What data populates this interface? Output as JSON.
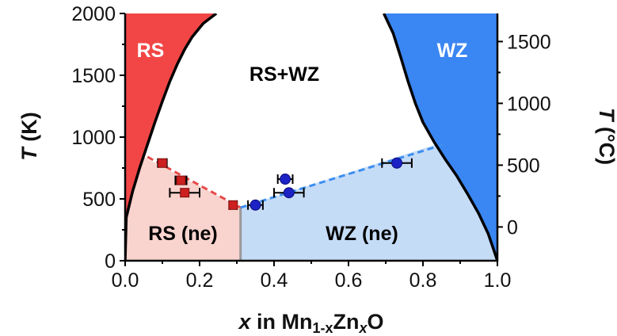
{
  "chart_data": {
    "type": "scatter",
    "title": "",
    "xlabel_prefix": "x",
    "xlabel_text": "in Mn",
    "xlabel_sub1": "1-x",
    "xlabel_mid": "Zn",
    "xlabel_sub2": "x",
    "xlabel_end": "O",
    "ylabel_var": "T",
    "ylabel_unit": "(K)",
    "y2label_var": "T",
    "y2label_unit": "(°C)",
    "xlim": [
      0.0,
      1.0
    ],
    "ylim": [
      0,
      2000
    ],
    "x_ticks": [
      "0.0",
      "0.2",
      "0.4",
      "0.6",
      "0.8",
      "1.0"
    ],
    "y_ticks": [
      "0",
      "500",
      "1000",
      "1500",
      "2000"
    ],
    "y2_ticks": [
      "0",
      "500",
      "1000",
      "1500"
    ],
    "y2_offset": 273,
    "grid": false,
    "regions": {
      "rs": "RS",
      "wz": "WZ",
      "two_phase": "RS+WZ",
      "rs_ne": "RS (ne)",
      "wz_ne": "WZ (ne)"
    },
    "colors": {
      "rs": "#f24646",
      "rs_light": "#f9d3ce",
      "wz": "#3a86f2",
      "wz_light": "#c5dcf7",
      "rs_points": "#cc1f1f",
      "wz_points": "#1c22c4",
      "rs_line": "#e84a4a",
      "wz_line": "#3d8ef0",
      "boundary": "#000000",
      "divider": "#999999"
    },
    "boundaries": {
      "rs_solvus": [
        [
          0.0,
          0
        ],
        [
          0.003,
          350
        ],
        [
          0.02,
          560
        ],
        [
          0.04,
          760
        ],
        [
          0.06,
          940
        ],
        [
          0.08,
          1120
        ],
        [
          0.1,
          1290
        ],
        [
          0.12,
          1450
        ],
        [
          0.14,
          1590
        ],
        [
          0.16,
          1710
        ],
        [
          0.18,
          1810
        ],
        [
          0.21,
          1920
        ],
        [
          0.245,
          2000
        ]
      ],
      "wz_solvus": [
        [
          0.695,
          2000
        ],
        [
          0.72,
          1840
        ],
        [
          0.74,
          1650
        ],
        [
          0.76,
          1450
        ],
        [
          0.78,
          1270
        ],
        [
          0.8,
          1120
        ],
        [
          0.83,
          960
        ],
        [
          0.86,
          820
        ],
        [
          0.89,
          690
        ],
        [
          0.92,
          540
        ],
        [
          0.95,
          380
        ],
        [
          0.975,
          220
        ],
        [
          0.99,
          90
        ],
        [
          1.0,
          0
        ]
      ]
    },
    "metastable_lines": {
      "rs": [
        [
          0.06,
          840
        ],
        [
          0.31,
          430
        ]
      ],
      "wz": [
        [
          0.31,
          430
        ],
        [
          0.855,
          940
        ]
      ]
    },
    "series": [
      {
        "name": "",
        "marker": "square",
        "points": [
          {
            "x": 0.1,
            "y": 790,
            "xerr": 0.012
          },
          {
            "x": 0.15,
            "y": 650,
            "xerr": 0.015
          },
          {
            "x": 0.16,
            "y": 550,
            "xerr": 0.04
          },
          {
            "x": 0.29,
            "y": 450,
            "xerr": 0.01
          }
        ]
      },
      {
        "name": "",
        "marker": "circle",
        "points": [
          {
            "x": 0.35,
            "y": 450,
            "xerr": 0.02
          },
          {
            "x": 0.43,
            "y": 660,
            "xerr": 0.02
          },
          {
            "x": 0.44,
            "y": 550,
            "xerr": 0.04
          },
          {
            "x": 0.73,
            "y": 790,
            "xerr": 0.04
          }
        ]
      }
    ]
  }
}
